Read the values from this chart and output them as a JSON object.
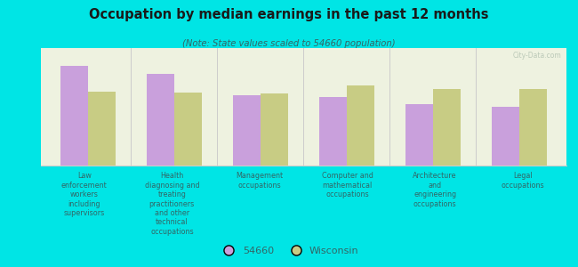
{
  "title": "Occupation by median earnings in the past 12 months",
  "subtitle": "(Note: State values scaled to 54660 population)",
  "categories": [
    "Law\nenforcement\nworkers\nincluding\nsupervisors",
    "Health\ndiagnosing and\ntreating\npractitioners\nand other\ntechnical\noccupations",
    "Management\noccupations",
    "Computer and\nmathematical\noccupations",
    "Architecture\nand\nengineering\noccupations",
    "Legal\noccupations"
  ],
  "values_54660": [
    0.85,
    0.78,
    0.6,
    0.58,
    0.52,
    0.5
  ],
  "values_wisconsin": [
    0.63,
    0.62,
    0.61,
    0.68,
    0.65,
    0.65
  ],
  "color_54660": "#c9a0dc",
  "color_wisconsin": "#c8cc84",
  "background_color": "#00e5e5",
  "plot_bg_color": "#eef2e0",
  "bar_width": 0.32,
  "legend_label_54660": "54660",
  "legend_label_wisconsin": "Wisconsin",
  "watermark": "City-Data.com",
  "title_color": "#1a1a1a",
  "subtitle_color": "#336666",
  "label_color": "#336666",
  "divider_color": "#cccccc"
}
